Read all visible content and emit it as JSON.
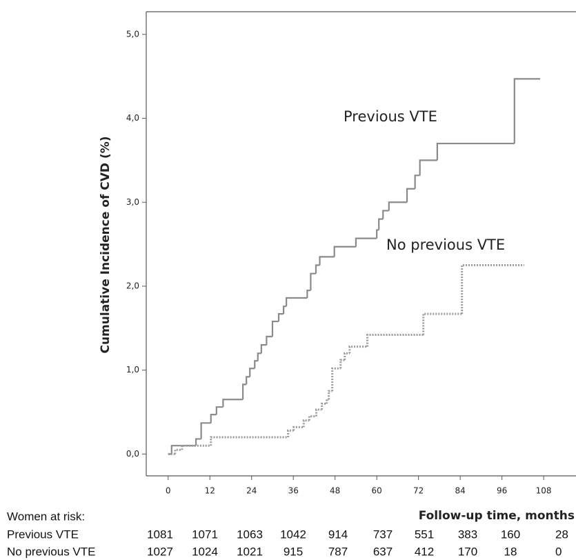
{
  "chart_data": {
    "type": "step",
    "ylabel": "Cumulative Incidence of CVD (%)",
    "xlabel": "Follow-up time, months",
    "xlim": [
      -6.3,
      117.3
    ],
    "ylim": [
      -0.26,
      5.27
    ],
    "xticks": [
      0,
      12,
      24,
      36,
      48,
      60,
      72,
      84,
      96,
      108
    ],
    "yticks": [
      {
        "value": 0,
        "label": "0,0"
      },
      {
        "value": 1,
        "label": "1,0"
      },
      {
        "value": 2,
        "label": "2,0"
      },
      {
        "value": 3,
        "label": "3,0"
      },
      {
        "value": 4,
        "label": "4,0"
      },
      {
        "value": 5,
        "label": "5,0"
      }
    ],
    "series": [
      {
        "name": "Previous VTE",
        "color": "#8a8a8a",
        "dashed": false,
        "x": [
          0,
          1,
          8,
          9.5,
          12.3,
          13.9,
          15.8,
          21.5,
          22.5,
          23.5,
          24.9,
          25.8,
          26.8,
          28.3,
          30,
          31.8,
          33.2,
          34,
          36.1,
          40,
          41,
          42.5,
          43.6,
          47.8,
          54,
          60,
          60.6,
          61.8,
          63.5,
          68.7,
          71,
          72.4,
          77.4,
          99.6,
          107
        ],
        "values": [
          0,
          0.1,
          0.18,
          0.37,
          0.47,
          0.56,
          0.65,
          0.83,
          0.92,
          1.02,
          1.11,
          1.2,
          1.3,
          1.4,
          1.58,
          1.67,
          1.76,
          1.86,
          1.86,
          1.95,
          2.15,
          2.25,
          2.35,
          2.47,
          2.57,
          2.67,
          2.8,
          2.9,
          3.0,
          3.16,
          3.32,
          3.5,
          3.7,
          4.47,
          4.47
        ],
        "annotation": "Previous VTE"
      },
      {
        "name": "No previous VTE",
        "color": "#9a9a9a",
        "dashed": true,
        "x": [
          0,
          2,
          4,
          10.7,
          12.3,
          34.5,
          36.1,
          39,
          40.6,
          42.6,
          44.2,
          45.6,
          46.2,
          47.2,
          49.6,
          50.8,
          52.2,
          57.3,
          73.4,
          84.5,
          102.4
        ],
        "values": [
          0,
          0.05,
          0.1,
          0.1,
          0.2,
          0.28,
          0.32,
          0.4,
          0.45,
          0.53,
          0.6,
          0.65,
          0.75,
          1.02,
          1.12,
          1.2,
          1.28,
          1.42,
          1.67,
          2.25,
          2.25
        ],
        "annotation": "No previous VTE"
      }
    ],
    "risk_table": {
      "title": "Women at risk:",
      "rows": [
        {
          "label": "Previous VTE",
          "counts": [
            "1081",
            "1071",
            "1063",
            "1042",
            "914",
            "737",
            "551",
            "383",
            "160",
            "28"
          ]
        },
        {
          "label": "No previous VTE",
          "counts": [
            "1027",
            "1024",
            "1021",
            "915",
            "787",
            "637",
            "412",
            "170",
            "18",
            "0"
          ]
        }
      ]
    }
  }
}
